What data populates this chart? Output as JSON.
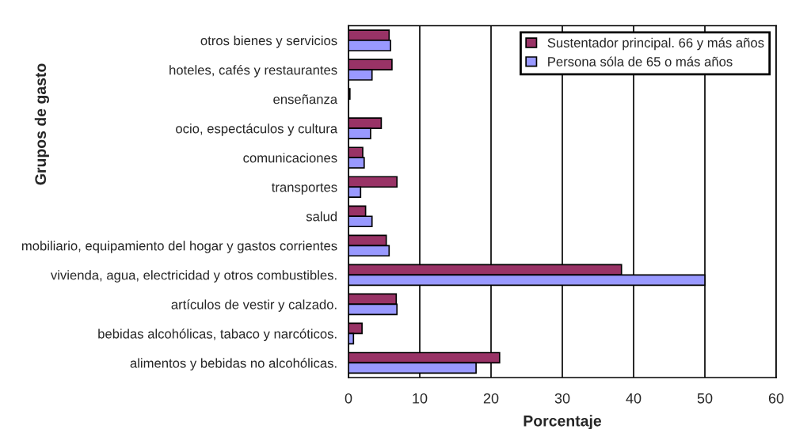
{
  "chart_data": {
    "type": "bar",
    "orientation": "horizontal",
    "xlabel": "Porcentaje",
    "ylabel": "Grupos de gasto",
    "categories": [
      "otros bienes y servicios",
      "hoteles, cafés y restaurantes",
      "enseñanza",
      "ocio, espectáculos y cultura",
      "comunicaciones",
      "transportes",
      "salud",
      "mobiliario, equipamiento del hogar y gastos corrientes",
      "vivienda, agua, electricidad y otros combustibles.",
      "artículos de vestir y calzado.",
      "bebidas alcohólicas, tabaco y narcóticos.",
      "alimentos y bebidas no alcohólicas."
    ],
    "series": [
      {
        "name": "Sustentador principal. 66 y más años",
        "color": "#993366",
        "values": [
          5.7,
          6.1,
          0.2,
          4.6,
          2.0,
          6.8,
          2.4,
          5.3,
          38.3,
          6.7,
          1.9,
          21.2
        ]
      },
      {
        "name": "Persona sóla de 65 o más años",
        "color": "#9999ff",
        "values": [
          5.9,
          3.3,
          null,
          3.1,
          2.2,
          1.7,
          3.3,
          5.7,
          50,
          6.8,
          0.7,
          17.9
        ]
      }
    ],
    "xlim": [
      0,
      60
    ],
    "xticks": [
      0,
      10,
      20,
      30,
      40,
      50,
      60
    ],
    "grid": "x",
    "legend": "top right"
  }
}
